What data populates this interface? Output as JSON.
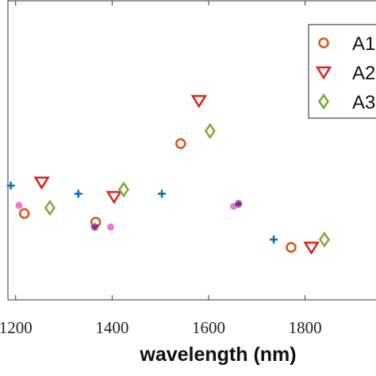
{
  "chart_data": {
    "type": "scatter",
    "xlabel": "wavelength (nm)",
    "xlim": [
      1184,
      1947
    ],
    "ylim": [
      0,
      100
    ],
    "xticks": [
      1200,
      1400,
      1600,
      1800
    ],
    "series": [
      {
        "name": "A1",
        "marker": "circle",
        "color": "#d95319",
        "x": [
          1218,
          1366,
          1542,
          1771
        ],
        "values": [
          28.8,
          25.9,
          52.1,
          17.5
        ]
      },
      {
        "name": "A2",
        "marker": "triangle-down",
        "color": "#e0201b",
        "x": [
          1254,
          1404,
          1580,
          1813
        ],
        "values": [
          39.2,
          34.4,
          66.4,
          17.5
        ]
      },
      {
        "name": "A3",
        "marker": "diamond",
        "color": "#77ac30",
        "x": [
          1271,
          1424,
          1603,
          1840
        ],
        "values": [
          30.7,
          36.8,
          56.3,
          20.1
        ]
      },
      {
        "marker": "plus",
        "color": "#0072bd",
        "x": [
          1190,
          1330,
          1503,
          1735
        ],
        "values": [
          38.1,
          35.4,
          35.4,
          20.1
        ]
      },
      {
        "marker": "dot",
        "color": "#f07cc8",
        "x": [
          1207,
          1397,
          1652
        ],
        "values": [
          31.5,
          24.3,
          31.2
        ]
      },
      {
        "marker": "asterisk",
        "color": "#7e2f8e",
        "x": [
          1364,
          1662
        ],
        "values": [
          24.3,
          32.0
        ]
      }
    ],
    "legend": "upper right"
  }
}
